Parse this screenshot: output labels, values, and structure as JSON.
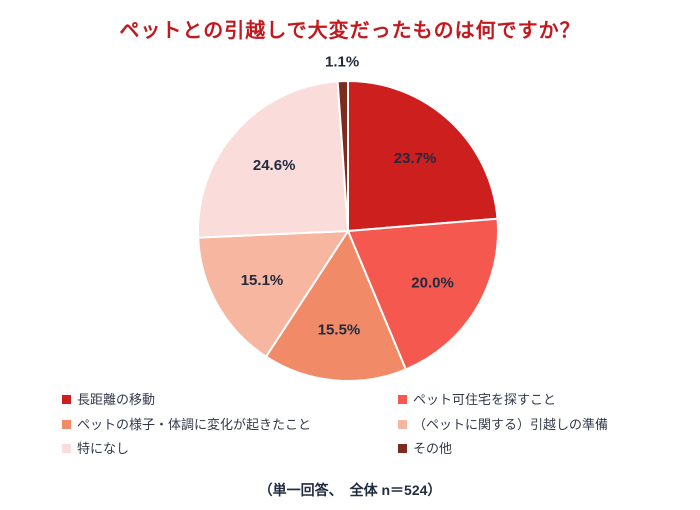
{
  "title": "ペットとの引越しで大変だったものは何ですか？",
  "footer": "（単一回答、　全体 n＝524）",
  "chart_data": {
    "type": "pie",
    "title": "ペットとの引越しで大変だったものは何ですか？",
    "start_angle_deg": 0,
    "direction": "clockwise",
    "legend_position": "bottom",
    "legend_columns": 2,
    "slices": [
      {
        "label": "長距離の移動",
        "value": 23.7,
        "pct_label": "23.7%",
        "color": "#ce1f1f"
      },
      {
        "label": "ペット可住宅を探すこと",
        "value": 20.0,
        "pct_label": "20.0%",
        "color": "#f4584f"
      },
      {
        "label": "ペットの様子・体調に変化が起きたこと",
        "value": 15.5,
        "pct_label": "15.5%",
        "color": "#f08a67"
      },
      {
        "label": "（ペットに関する）引越しの準備",
        "value": 15.1,
        "pct_label": "15.1%",
        "color": "#f6b6a0"
      },
      {
        "label": "特になし",
        "value": 24.6,
        "pct_label": "24.6%",
        "color": "#fadddb"
      },
      {
        "label": "その他",
        "value": 1.1,
        "pct_label": "1.1%",
        "color": "#7c2b1e"
      }
    ]
  }
}
